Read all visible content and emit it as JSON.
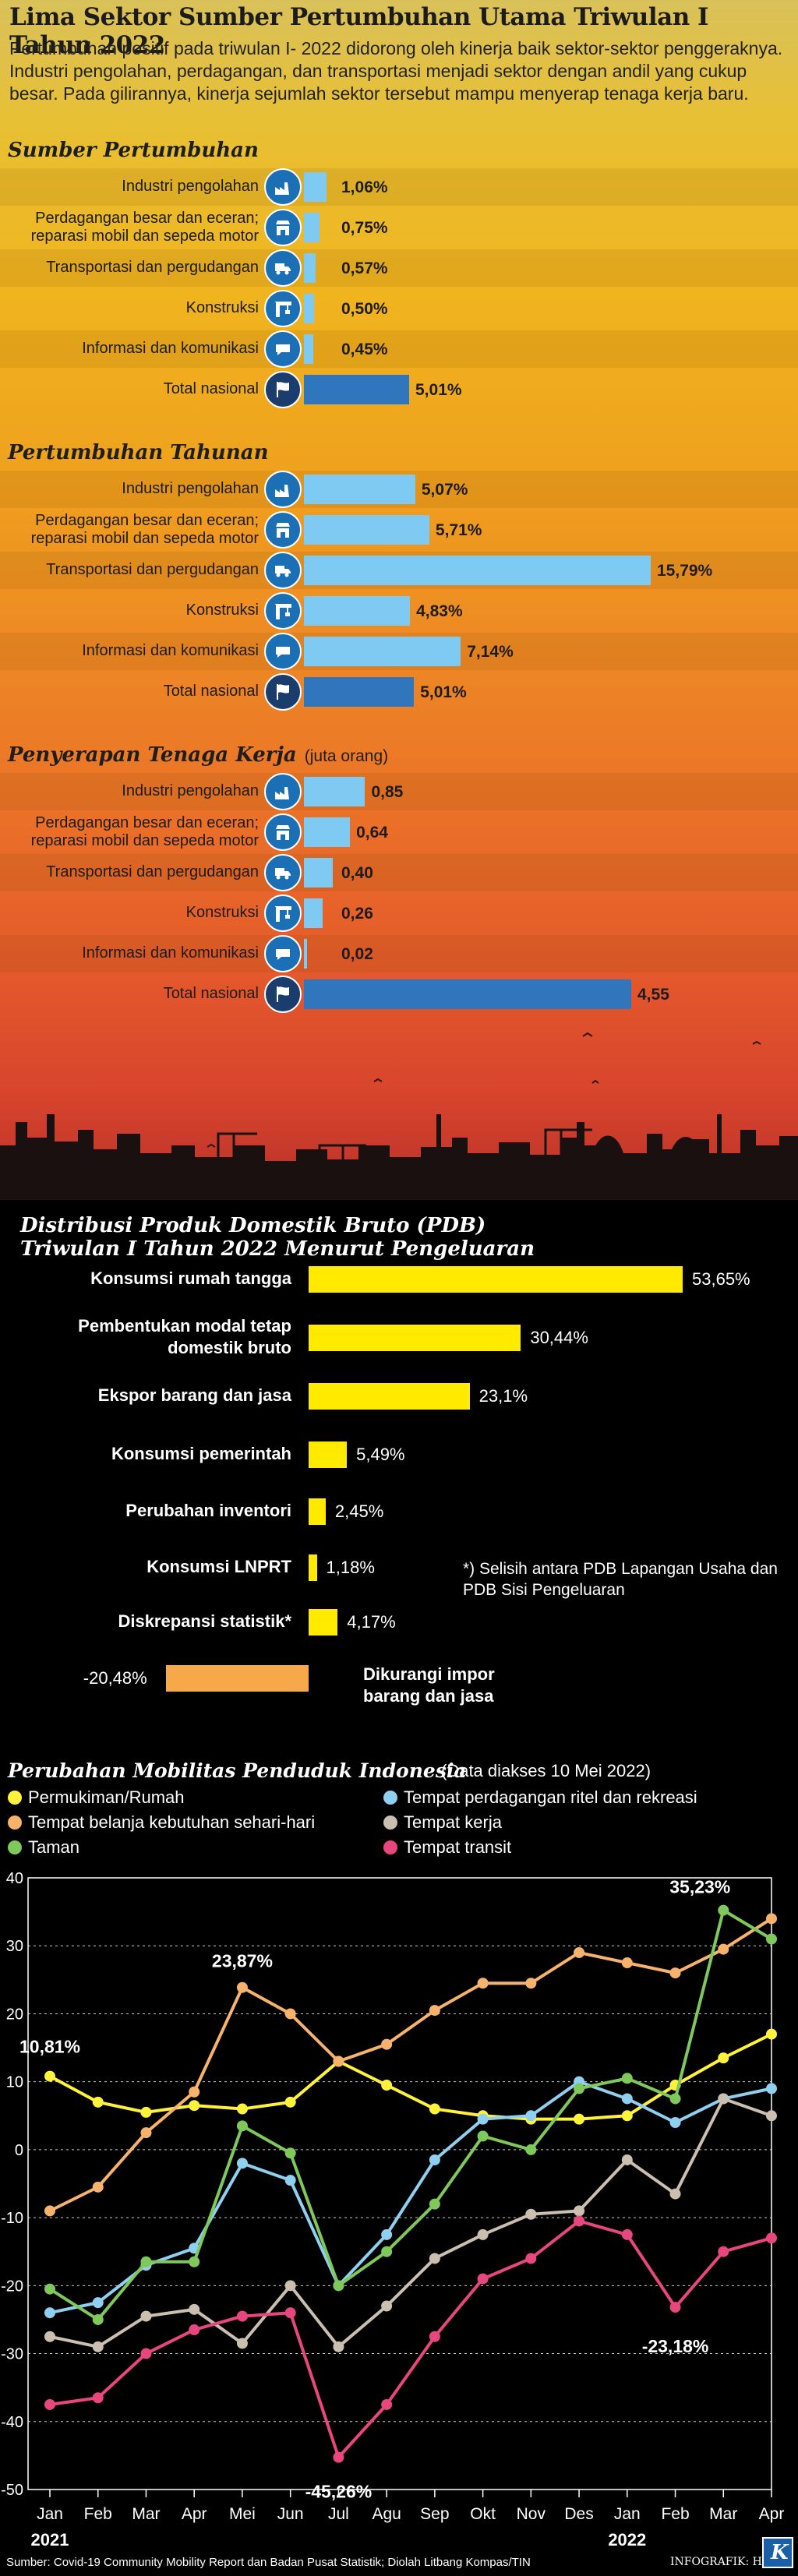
{
  "title": "Lima Sektor Sumber Pertumbuhan Utama Triwulan I Tahun 2022",
  "intro": "Pertumbuhan positif pada triwulan I- 2022 didorong oleh kinerja baik sektor-sektor penggeraknya. Industri pengolahan, perdagangan, dan transportasi menjadi sektor dengan andil yang cukup besar. Pada gilirannya, kinerja sejumlah sektor tersebut mampu menyerap tenaga kerja baru.",
  "sections": [
    {
      "title": "Sumber Pertumbuhan",
      "unit": "",
      "rows": [
        {
          "label": "Industri pengolahan",
          "value": 1.06,
          "display": "1,06%",
          "icon": "factory-icon"
        },
        {
          "label": "Perdagangan besar dan eceran; reparasi mobil dan sepeda motor",
          "value": 0.75,
          "display": "0,75%",
          "icon": "store-icon"
        },
        {
          "label": "Transportasi dan pergudangan",
          "value": 0.57,
          "display": "0,57%",
          "icon": "truck-icon"
        },
        {
          "label": "Konstruksi",
          "value": 0.5,
          "display": "0,50%",
          "icon": "crane-icon"
        },
        {
          "label": "Informasi dan komunikasi",
          "value": 0.45,
          "display": "0,45%",
          "icon": "chat-icon"
        },
        {
          "label": "Total nasional",
          "value": 5.01,
          "display": "5,01%",
          "icon": "flag-icon"
        }
      ]
    },
    {
      "title": "Pertumbuhan Tahunan",
      "unit": "",
      "rows": [
        {
          "label": "Industri pengolahan",
          "value": 5.07,
          "display": "5,07%",
          "icon": "factory-icon"
        },
        {
          "label": "Perdagangan besar dan eceran; reparasi mobil dan sepeda motor",
          "value": 5.71,
          "display": "5,71%",
          "icon": "store-icon"
        },
        {
          "label": "Transportasi dan pergudangan",
          "value": 15.79,
          "display": "15,79%",
          "icon": "truck-icon"
        },
        {
          "label": "Konstruksi",
          "value": 4.83,
          "display": "4,83%",
          "icon": "crane-icon"
        },
        {
          "label": "Informasi dan komunikasi",
          "value": 7.14,
          "display": "7,14%",
          "icon": "chat-icon"
        },
        {
          "label": "Total nasional",
          "value": 5.01,
          "display": "5,01%",
          "icon": "flag-icon"
        }
      ]
    },
    {
      "title": "Penyerapan Tenaga Kerja",
      "unit": "(juta orang)",
      "rows": [
        {
          "label": "Industri pengolahan",
          "value": 0.85,
          "display": "0,85",
          "icon": "factory-icon"
        },
        {
          "label": "Perdagangan besar dan eceran; reparasi mobil dan sepeda motor",
          "value": 0.64,
          "display": "0,64",
          "icon": "store-icon"
        },
        {
          "label": "Transportasi dan pergudangan",
          "value": 0.4,
          "display": "0,40",
          "icon": "truck-icon"
        },
        {
          "label": "Konstruksi",
          "value": 0.26,
          "display": "0,26",
          "icon": "crane-icon"
        },
        {
          "label": "Informasi dan komunikasi",
          "value": 0.02,
          "display": "0,02",
          "icon": "chat-icon"
        },
        {
          "label": "Total nasional",
          "value": 4.55,
          "display": "4,55",
          "icon": "flag-icon"
        }
      ]
    }
  ],
  "pdb": {
    "title_line1": "Distribusi Produk Domestik Bruto (PDB)",
    "title_line2": "Triwulan I Tahun 2022 Menurut Pengeluaran",
    "note": "*) Selisih antara PDB Lapangan Usaha dan PDB Sisi Pengeluaran"
  },
  "colors": {
    "growth_bar": "#7fcaf3",
    "total_bar": "#2f76bd",
    "pdb_bar": "#ffea00",
    "pdb_negative": "#f7a94a"
  },
  "chart_data": [
    {
      "type": "bar",
      "title": "Sumber Pertumbuhan",
      "categories": [
        "Industri pengolahan",
        "Perdagangan besar dan eceran; reparasi mobil dan sepeda motor",
        "Transportasi dan pergudangan",
        "Konstruksi",
        "Informasi dan komunikasi",
        "Total nasional"
      ],
      "values": [
        1.06,
        0.75,
        0.57,
        0.5,
        0.45,
        5.01
      ],
      "unit": "%"
    },
    {
      "type": "bar",
      "title": "Pertumbuhan Tahunan",
      "categories": [
        "Industri pengolahan",
        "Perdagangan besar dan eceran; reparasi mobil dan sepeda motor",
        "Transportasi dan pergudangan",
        "Konstruksi",
        "Informasi dan komunikasi",
        "Total nasional"
      ],
      "values": [
        5.07,
        5.71,
        15.79,
        4.83,
        7.14,
        5.01
      ],
      "unit": "%"
    },
    {
      "type": "bar",
      "title": "Penyerapan Tenaga Kerja",
      "unit": "juta orang",
      "categories": [
        "Industri pengolahan",
        "Perdagangan besar dan eceran; reparasi mobil dan sepeda motor",
        "Transportasi dan pergudangan",
        "Konstruksi",
        "Informasi dan komunikasi",
        "Total nasional"
      ],
      "values": [
        0.85,
        0.64,
        0.4,
        0.26,
        0.02,
        4.55
      ]
    },
    {
      "type": "bar",
      "title": "Distribusi Produk Domestik Bruto (PDB) Triwulan I Tahun 2022 Menurut Pengeluaran",
      "categories": [
        "Konsumsi rumah tangga",
        "Pembentukan modal tetap domestik bruto",
        "Ekspor barang dan jasa",
        "Konsumsi pemerintah",
        "Perubahan inventori",
        "Konsumsi LNPRT",
        "Diskrepansi statistik*",
        "Dikurangi impor barang dan jasa"
      ],
      "values": [
        53.65,
        30.44,
        23.1,
        5.49,
        2.45,
        1.18,
        4.17,
        -20.48
      ],
      "labels": [
        "53,65%",
        "30,44%",
        "23,1%",
        "5,49%",
        "2,45%",
        "1,18%",
        "4,17%",
        "-20,48%"
      ]
    },
    {
      "type": "line",
      "title": "Perubahan Mobilitas Penduduk Indonesia",
      "subtitle": "(Data diakses 10 Mei 2022)",
      "x": [
        "Jan",
        "Feb",
        "Mar",
        "Apr",
        "Mei",
        "Jun",
        "Jul",
        "Agu",
        "Sep",
        "Okt",
        "Nov",
        "Des",
        "Jan",
        "Feb",
        "Mar",
        "Apr"
      ],
      "year_labels": [
        "2021",
        "2022"
      ],
      "ylim": [
        -50,
        40
      ],
      "yticks": [
        -50,
        -40,
        -30,
        -20,
        -10,
        0,
        10,
        20,
        30,
        40
      ],
      "series": [
        {
          "name": "Permukiman/Rumah",
          "color": "#fff23a",
          "values": [
            10.81,
            7,
            5.5,
            6.5,
            6,
            7,
            13,
            9.5,
            6,
            5,
            4.5,
            4.5,
            5,
            9.5,
            13.5,
            17
          ]
        },
        {
          "name": "Tempat perdagangan ritel dan rekreasi",
          "color": "#8fd0f0",
          "values": [
            -24,
            -22.5,
            -17,
            -14.5,
            -2,
            -4.5,
            -20,
            -12.5,
            -1.5,
            4.5,
            5,
            10,
            7.5,
            4,
            7.5,
            9
          ]
        },
        {
          "name": "Tempat belanja kebutuhan sehari-hari",
          "color": "#f7b36b",
          "values": [
            -9,
            -5.5,
            2.5,
            8.5,
            23.87,
            20,
            13,
            15.5,
            20.5,
            24.5,
            24.5,
            29,
            27.5,
            26,
            29.5,
            34
          ]
        },
        {
          "name": "Tempat kerja",
          "color": "#cbbfb0",
          "values": [
            -27.5,
            -29,
            -24.5,
            -23.5,
            -28.5,
            -20,
            -29,
            -23,
            -16,
            -12.5,
            -9.5,
            -9,
            -1.5,
            -6.5,
            7.5,
            5
          ]
        },
        {
          "name": "Taman",
          "color": "#7ec85c",
          "values": [
            -20.5,
            -25,
            -16.5,
            -16.5,
            3.5,
            -0.5,
            -20,
            -15,
            -8,
            2,
            0,
            9,
            10.5,
            7.5,
            35.23,
            31
          ]
        },
        {
          "name": "Tempat transit",
          "color": "#e8467f",
          "values": [
            -37.5,
            -36.5,
            -30,
            -26.5,
            -24.5,
            -24,
            -45.26,
            -37.5,
            -27.5,
            -19,
            -16,
            -10.5,
            -12.5,
            -23.18,
            -15,
            -13
          ]
        }
      ],
      "annotations": [
        "10,81%",
        "23,87%",
        "35,23%",
        "-45,26%",
        "-23,18%"
      ]
    }
  ],
  "mobility": {
    "source": "Sumber: Covid-19 Community Mobility Report dan Badan Pusat Statistik; Diolah Litbang Kompas/TIN",
    "credit": "INFOGRAFIK: HANS",
    "logo_letter": "K"
  }
}
